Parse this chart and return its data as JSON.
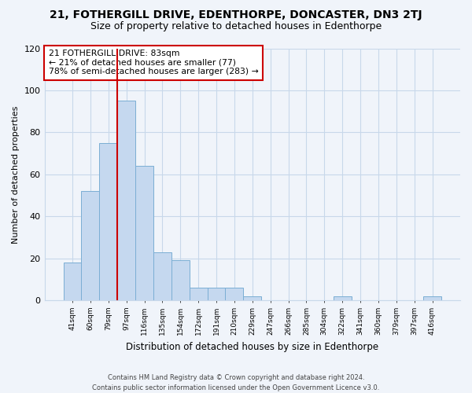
{
  "title": "21, FOTHERGILL DRIVE, EDENTHORPE, DONCASTER, DN3 2TJ",
  "subtitle": "Size of property relative to detached houses in Edenthorpe",
  "xlabel": "Distribution of detached houses by size in Edenthorpe",
  "ylabel": "Number of detached properties",
  "bar_labels": [
    "41sqm",
    "60sqm",
    "79sqm",
    "97sqm",
    "116sqm",
    "135sqm",
    "154sqm",
    "172sqm",
    "191sqm",
    "210sqm",
    "229sqm",
    "247sqm",
    "266sqm",
    "285sqm",
    "304sqm",
    "322sqm",
    "341sqm",
    "360sqm",
    "379sqm",
    "397sqm",
    "416sqm"
  ],
  "bar_values": [
    18,
    52,
    75,
    95,
    64,
    23,
    19,
    6,
    6,
    6,
    2,
    0,
    0,
    0,
    0,
    2,
    0,
    0,
    0,
    0,
    2
  ],
  "bar_color": "#c5d8ef",
  "bar_edge_color": "#7baed4",
  "vline_color": "#cc0000",
  "vline_x": 2.5,
  "ylim": [
    0,
    120
  ],
  "yticks": [
    0,
    20,
    40,
    60,
    80,
    100,
    120
  ],
  "annotation_text": "21 FOTHERGILL DRIVE: 83sqm\n← 21% of detached houses are smaller (77)\n78% of semi-detached houses are larger (283) →",
  "footer_line1": "Contains HM Land Registry data © Crown copyright and database right 2024.",
  "footer_line2": "Contains public sector information licensed under the Open Government Licence v3.0.",
  "background_color": "#f0f4fa",
  "grid_color": "#c8d8ea",
  "title_fontsize": 10,
  "subtitle_fontsize": 9
}
